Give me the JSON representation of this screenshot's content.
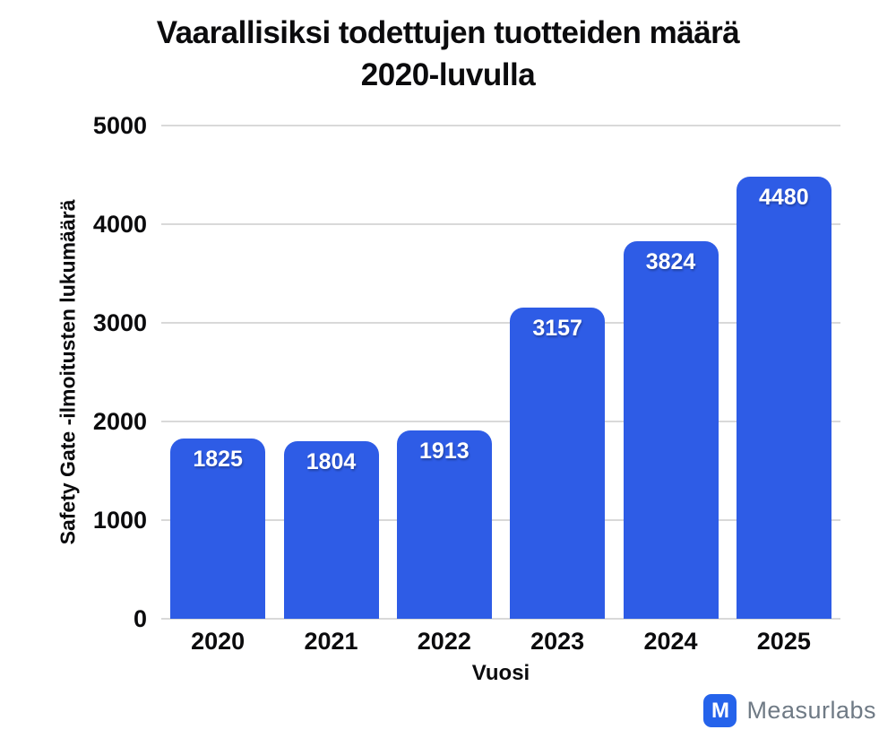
{
  "chart_data": {
    "type": "bar",
    "title": "Vaarallisiksi todettujen tuotteiden määrä 2020-luvulla",
    "title_lines": [
      "Vaarallisiksi todettujen tuotteiden määrä",
      "2020-luvulla"
    ],
    "categories": [
      "2020",
      "2021",
      "2022",
      "2023",
      "2024",
      "2025"
    ],
    "values": [
      1825,
      1804,
      1913,
      3157,
      3824,
      4480
    ],
    "xlabel": "Vuosi",
    "ylabel": "Safety Gate -ilmoitusten lukumäärä",
    "ylim": [
      0,
      5000
    ],
    "yticks": [
      0,
      1000,
      2000,
      3000,
      4000,
      5000
    ],
    "grid": "horizontal",
    "legend": "none",
    "bar_color": "#2e5ce6",
    "value_label_color": "#ffffff",
    "gridline_color": "#d9d9d9"
  },
  "branding": {
    "logo_icon": "M",
    "logo_text": "Measurlabs",
    "logo_color": "#2563eb",
    "text_color": "#6f7a85"
  }
}
